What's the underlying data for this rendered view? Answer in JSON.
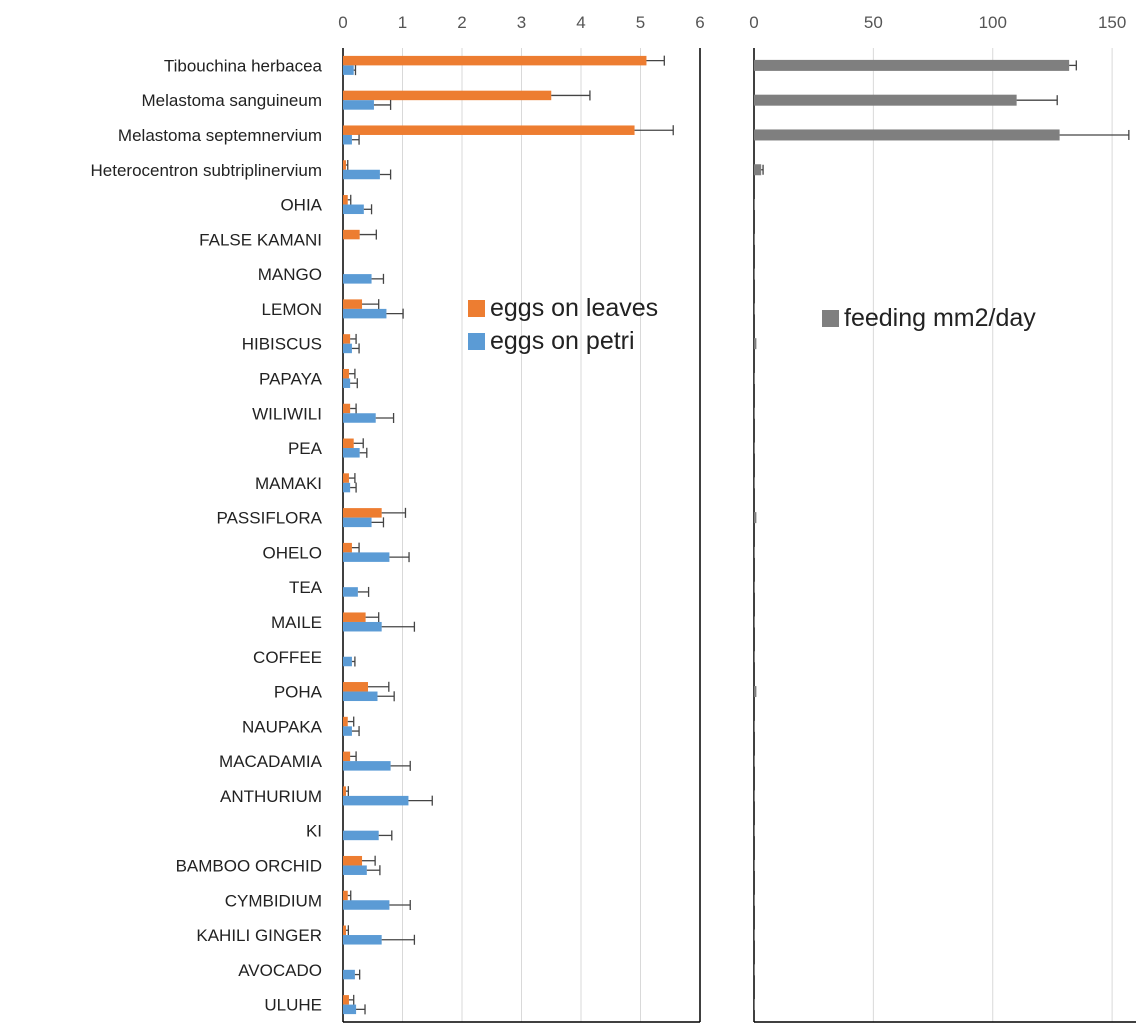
{
  "chart_data": [
    {
      "type": "bar",
      "orientation": "horizontal",
      "categories": [
        "Tibouchina herbacea",
        "Melastoma sanguineum",
        "Melastoma septemnervium",
        "Heterocentron subtriplinervium",
        "OHIA",
        "FALSE KAMANI",
        "MANGO",
        "LEMON",
        "HIBISCUS",
        "PAPAYA",
        "WILIWILI",
        "PEA",
        "MAMAKI",
        "PASSIFLORA",
        "OHELO",
        "TEA",
        "MAILE",
        "COFFEE",
        "POHA",
        "NAUPAKA",
        "MACADAMIA",
        "ANTHURIUM",
        "KI",
        "BAMBOO ORCHID",
        "CYMBIDIUM",
        "KAHILI GINGER",
        "AVOCADO",
        "ULUHE"
      ],
      "series": [
        {
          "name": "eggs on leaves",
          "color": "#ED7D31",
          "values": [
            5.1,
            3.5,
            4.9,
            0.05,
            0.08,
            0.28,
            0,
            0.32,
            0.12,
            0.1,
            0.12,
            0.18,
            0.1,
            0.65,
            0.15,
            0,
            0.38,
            0,
            0.42,
            0.08,
            0.12,
            0.05,
            0,
            0.32,
            0.08,
            0.05,
            0,
            0.1
          ],
          "errors": [
            0.3,
            0.65,
            0.65,
            0.03,
            0.05,
            0.28,
            0,
            0.28,
            0.1,
            0.1,
            0.1,
            0.16,
            0.1,
            0.4,
            0.12,
            0,
            0.22,
            0,
            0.35,
            0.1,
            0.1,
            0.04,
            0,
            0.22,
            0.05,
            0.04,
            0,
            0.08
          ]
        },
        {
          "name": "eggs on petri",
          "color": "#5B9BD5",
          "values": [
            0.18,
            0.52,
            0.15,
            0.62,
            0.35,
            0,
            0.48,
            0.73,
            0.15,
            0.12,
            0.55,
            0.28,
            0.12,
            0.48,
            0.78,
            0.25,
            0.65,
            0.15,
            0.58,
            0.15,
            0.8,
            1.1,
            0.6,
            0.4,
            0.78,
            0.65,
            0.2,
            0.22
          ],
          "errors": [
            0.03,
            0.28,
            0.12,
            0.18,
            0.13,
            0,
            0.2,
            0.28,
            0.12,
            0.12,
            0.3,
            0.12,
            0.1,
            0.2,
            0.33,
            0.18,
            0.55,
            0.05,
            0.28,
            0.12,
            0.33,
            0.4,
            0.22,
            0.22,
            0.35,
            0.55,
            0.08,
            0.15
          ]
        }
      ],
      "xlim": [
        0,
        6
      ],
      "xticks": [
        0,
        1,
        2,
        3,
        4,
        5,
        6
      ],
      "grid": true,
      "legend": "center-right"
    },
    {
      "type": "bar",
      "orientation": "horizontal",
      "categories": [
        "Tibouchina herbacea",
        "Melastoma sanguineum",
        "Melastoma septemnervium",
        "Heterocentron subtriplinervium",
        "OHIA",
        "FALSE KAMANI",
        "MANGO",
        "LEMON",
        "HIBISCUS",
        "PAPAYA",
        "WILIWILI",
        "PEA",
        "MAMAKI",
        "PASSIFLORA",
        "OHELO",
        "TEA",
        "MAILE",
        "COFFEE",
        "POHA",
        "NAUPAKA",
        "MACADAMIA",
        "ANTHURIUM",
        "KI",
        "BAMBOO ORCHID",
        "CYMBIDIUM",
        "KAHILI GINGER",
        "AVOCADO",
        "ULUHE"
      ],
      "series": [
        {
          "name": "feeding mm2/day",
          "color": "#7F7F7F",
          "values": [
            132,
            110,
            128,
            3,
            0.3,
            0.3,
            0.3,
            0.3,
            1,
            0.3,
            0.3,
            0.3,
            0.3,
            1,
            0.3,
            0.3,
            0.3,
            0.3,
            1,
            0.3,
            0.3,
            0.3,
            0.3,
            0.3,
            0.3,
            0.3,
            0.3,
            0.3
          ],
          "errors": [
            3,
            17,
            29,
            0.8,
            0,
            0,
            0,
            0,
            0,
            0,
            0,
            0,
            0,
            0,
            0,
            0,
            0,
            0,
            0,
            0,
            0,
            0,
            0,
            0,
            0,
            0,
            0,
            0
          ]
        }
      ],
      "xlim": [
        0,
        160
      ],
      "xticks": [
        0,
        50,
        100,
        150
      ],
      "grid": true,
      "legend": "center-right"
    }
  ]
}
